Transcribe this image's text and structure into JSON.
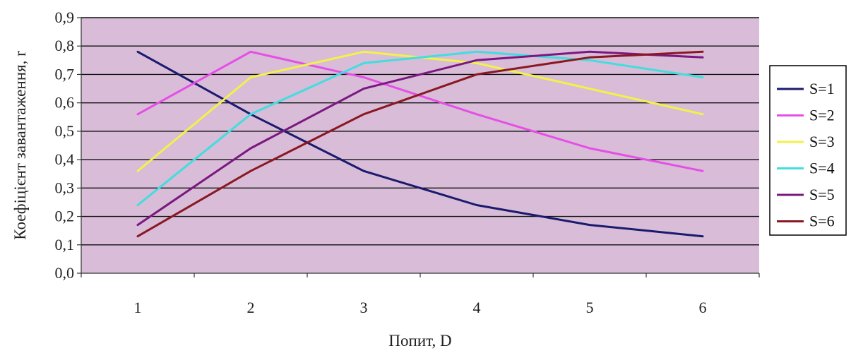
{
  "chart_data": {
    "type": "line",
    "title": "",
    "xlabel": "Попит, D",
    "ylabel": "Коефіцієнт завантаження, r",
    "x": [
      1,
      2,
      3,
      4,
      5,
      6
    ],
    "xticks": [
      "1",
      "2",
      "3",
      "4",
      "5",
      "6"
    ],
    "yticks": [
      "0,0",
      "0,1",
      "0,2",
      "0,3",
      "0,4",
      "0,5",
      "0,6",
      "0,7",
      "0,8",
      "0,9"
    ],
    "ylim": [
      0,
      0.9
    ],
    "grid": "horizontal",
    "legend_position": "right",
    "background_color": "#d8bcd8",
    "series": [
      {
        "name": "S=1",
        "color": "#1a1a6e",
        "values": [
          0.78,
          0.56,
          0.36,
          0.24,
          0.17,
          0.13
        ]
      },
      {
        "name": "S=2",
        "color": "#e64ee6",
        "values": [
          0.56,
          0.78,
          0.69,
          0.56,
          0.44,
          0.36
        ]
      },
      {
        "name": "S=3",
        "color": "#f2f24a",
        "values": [
          0.36,
          0.69,
          0.78,
          0.74,
          0.65,
          0.56
        ]
      },
      {
        "name": "S=4",
        "color": "#40dede",
        "values": [
          0.24,
          0.56,
          0.74,
          0.78,
          0.75,
          0.69
        ]
      },
      {
        "name": "S=5",
        "color": "#7a1880",
        "values": [
          0.17,
          0.44,
          0.65,
          0.75,
          0.78,
          0.76
        ]
      },
      {
        "name": "S=6",
        "color": "#8a1822",
        "values": [
          0.13,
          0.36,
          0.56,
          0.7,
          0.76,
          0.78
        ]
      }
    ]
  }
}
